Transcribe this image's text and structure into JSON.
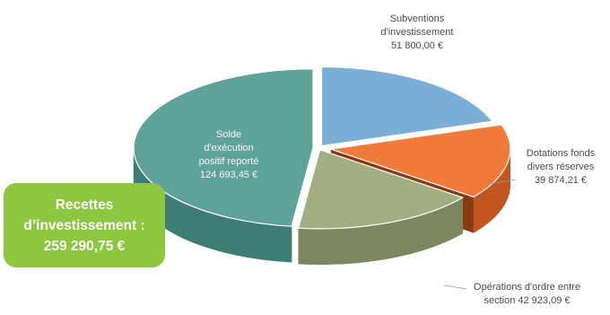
{
  "chart_data": {
    "type": "pie",
    "title": "",
    "style": "3d-exploded",
    "slices": [
      {
        "key": "subventions",
        "value": 51800.0,
        "lines": [
          "Subventions",
          "d'investissement",
          "51 800,00 €"
        ],
        "color": "#7aaed6",
        "side": "#5b8db4"
      },
      {
        "key": "dotations",
        "value": 39874.21,
        "lines": [
          "Dotations fonds",
          "divers réserves",
          "39 874,21 €"
        ],
        "color": "#f07a3a",
        "side": "#c2561f"
      },
      {
        "key": "operations",
        "value": 42923.09,
        "lines": [
          "Opérations d'ordre entre",
          "section  42 923,09 €"
        ],
        "color": "#a3ad82",
        "side": "#7d875d"
      },
      {
        "key": "solde",
        "value": 124693.45,
        "lines": [
          "Solde",
          "d'exécution",
          "positif reporté",
          "124 693,45 €"
        ],
        "color": "#5fa29a",
        "side": "#3e7d75"
      }
    ]
  },
  "badge": {
    "lines": [
      "Recettes",
      "d’investissement :",
      "259 290,75 €"
    ]
  }
}
